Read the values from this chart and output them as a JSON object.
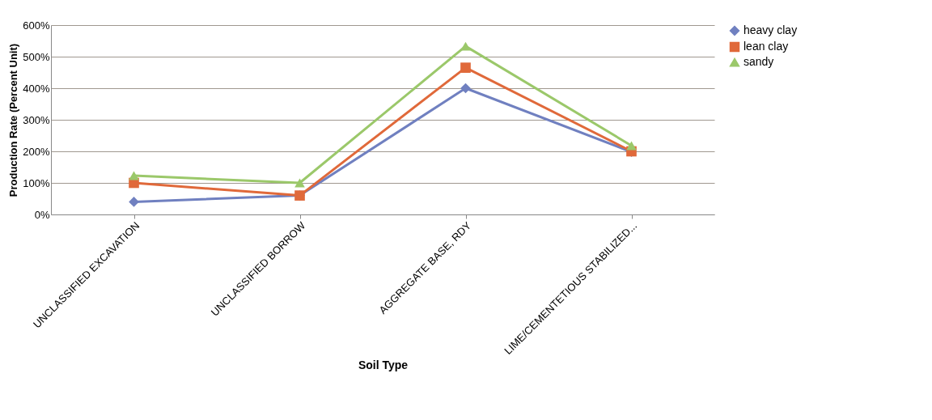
{
  "chart_data": {
    "type": "line",
    "xlabel": "Soil Type",
    "ylabel": "Production Rate (Percent Unit)",
    "categories": [
      "UNCLASSIFIED EXCAVATION",
      "UNCLASSIFIED BORROW",
      "AGGREGATE BASE, RDY",
      "LIME/CEMENTETIOUS STABILIZED..."
    ],
    "series": [
      {
        "name": "heavy clay",
        "color": "#7080c0",
        "marker": "diamond",
        "values": [
          40,
          60,
          400,
          198
        ]
      },
      {
        "name": "lean clay",
        "color": "#e0693a",
        "marker": "square",
        "values": [
          100,
          60,
          465,
          200
        ]
      },
      {
        "name": "sandy",
        "color": "#9bc86a",
        "marker": "triangle",
        "values": [
          123,
          100,
          533,
          218
        ]
      }
    ],
    "ylim": [
      0,
      600
    ],
    "yticks": [
      {
        "value": 0,
        "label": "0%"
      },
      {
        "value": 100,
        "label": "100%"
      },
      {
        "value": 200,
        "label": "200%"
      },
      {
        "value": 300,
        "label": "300%"
      },
      {
        "value": 400,
        "label": "400%"
      },
      {
        "value": 500,
        "label": "500%"
      },
      {
        "value": 600,
        "label": "600%"
      }
    ],
    "grid": "y",
    "legend": "right",
    "line_style": "solid"
  }
}
